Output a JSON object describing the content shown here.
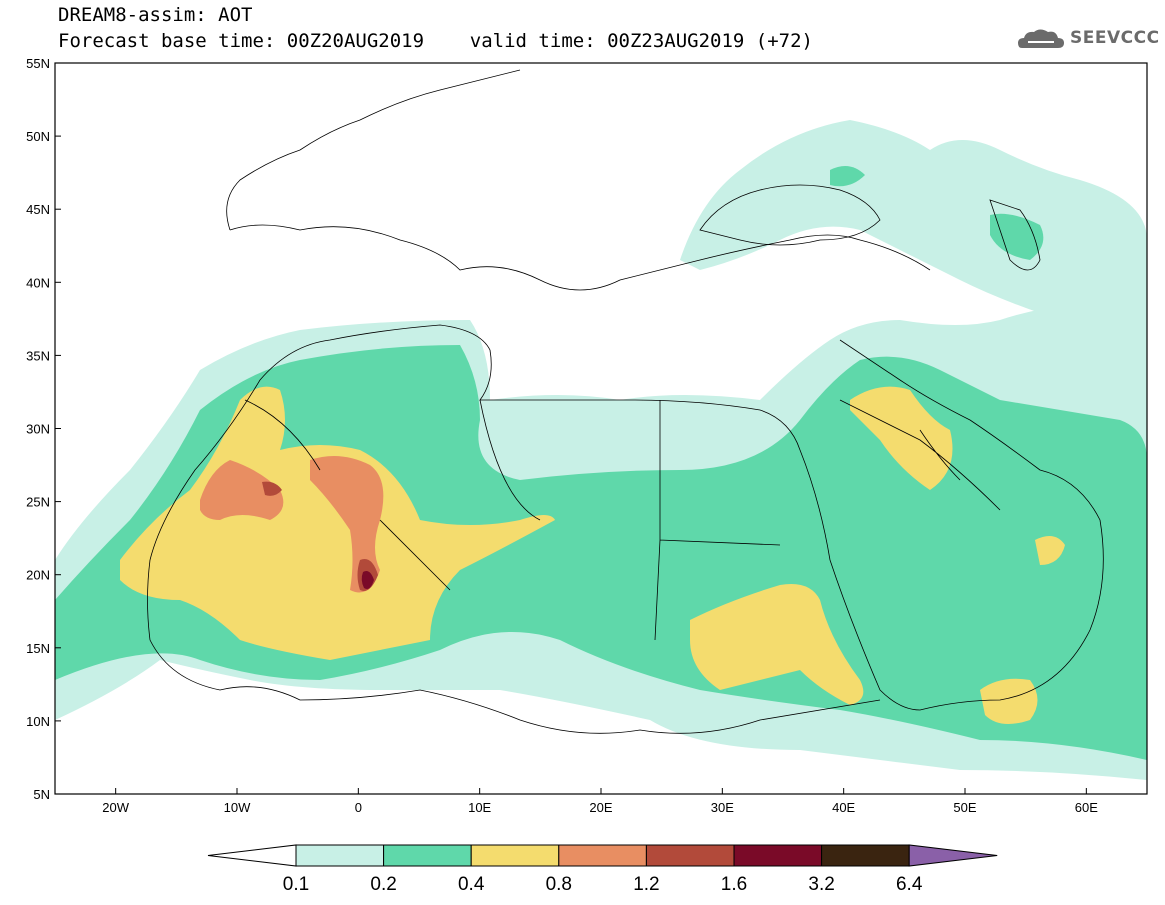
{
  "title": {
    "line1": "DREAM8-assim: AOT",
    "line2": "Forecast base time: 00Z20AUG2019    valid time: 00Z23AUG2019 (+72)"
  },
  "logo": {
    "text": "SEEVCCC",
    "icon": "cloud-icon"
  },
  "map": {
    "lon_range": [
      -25,
      65
    ],
    "lat_range": [
      5,
      55
    ],
    "y_ticks": [
      "5N",
      "10N",
      "15N",
      "20N",
      "25N",
      "30N",
      "35N",
      "40N",
      "45N",
      "50N",
      "55N"
    ],
    "x_ticks": [
      "20W",
      "10W",
      "0",
      "10E",
      "20E",
      "30E",
      "40E",
      "50E",
      "60E"
    ]
  },
  "colorbar": {
    "labels": [
      "0.1",
      "0.2",
      "0.4",
      "0.8",
      "1.2",
      "1.6",
      "3.2",
      "6.4"
    ],
    "colors": [
      "#ffffff",
      "#c8f0e6",
      "#5fd8aa",
      "#f4dc6e",
      "#e88e62",
      "#b24a3a",
      "#7a0a28",
      "#3a2410",
      "#8a60a8"
    ]
  }
}
